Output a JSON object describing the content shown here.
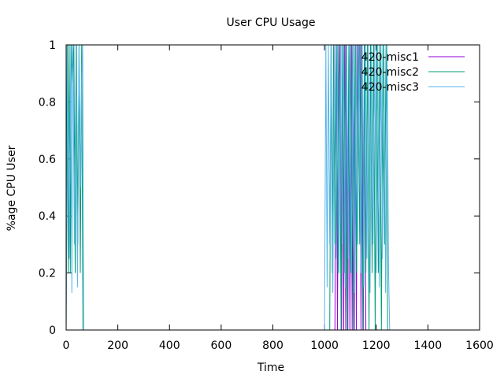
{
  "chart_data": {
    "type": "line",
    "title": "User CPU Usage",
    "xlabel": "Time",
    "ylabel": "%age CPU User",
    "xlim": [
      0,
      1600
    ],
    "ylim": [
      0,
      1
    ],
    "xticks": [
      "0",
      "200",
      "400",
      "600",
      "800",
      "1000",
      "1200",
      "1400",
      "1600"
    ],
    "yticks": [
      "0",
      "0.2",
      "0.4",
      "0.6",
      "0.8",
      "1"
    ],
    "legend_position": "top-right",
    "series": [
      {
        "name": "420-misc1",
        "color": "#9400d3",
        "points": [
          [
            1040,
            0
          ],
          [
            1045,
            1
          ],
          [
            1050,
            0
          ],
          [
            1055,
            1
          ],
          [
            1060,
            0.88
          ],
          [
            1063,
            1
          ],
          [
            1066,
            0
          ],
          [
            1070,
            1
          ],
          [
            1074,
            0
          ],
          [
            1078,
            1
          ],
          [
            1082,
            0
          ],
          [
            1086,
            1
          ],
          [
            1090,
            0
          ],
          [
            1094,
            1
          ],
          [
            1098,
            0
          ],
          [
            1103,
            1
          ],
          [
            1107,
            0
          ],
          [
            1111,
            1
          ],
          [
            1115,
            0
          ],
          [
            1119,
            1
          ],
          [
            1123,
            0
          ],
          [
            1128,
            1
          ],
          [
            1133,
            0.83
          ],
          [
            1137,
            1
          ],
          [
            1141,
            0
          ],
          [
            1145,
            1
          ],
          [
            1150,
            0
          ],
          [
            1154,
            1
          ],
          [
            1160,
            0
          ]
        ]
      },
      {
        "name": "420-misc2",
        "color": "#009e73",
        "points": [
          [
            0,
            0
          ],
          [
            4,
            1
          ],
          [
            8,
            0.2
          ],
          [
            12,
            1
          ],
          [
            16,
            0.2
          ],
          [
            20,
            1
          ],
          [
            25,
            0.87
          ],
          [
            30,
            1
          ],
          [
            35,
            0.2
          ],
          [
            40,
            1
          ],
          [
            45,
            0.3
          ],
          [
            50,
            1
          ],
          [
            55,
            0.2
          ],
          [
            60,
            1
          ],
          [
            65,
            0
          ],
          [
            1020,
            0
          ],
          [
            1025,
            1
          ],
          [
            1030,
            0.2
          ],
          [
            1035,
            1
          ],
          [
            1040,
            0.3
          ],
          [
            1046,
            1
          ],
          [
            1052,
            0.2
          ],
          [
            1058,
            1
          ],
          [
            1064,
            0
          ],
          [
            1070,
            1
          ],
          [
            1076,
            0.2
          ],
          [
            1082,
            1
          ],
          [
            1088,
            0
          ],
          [
            1094,
            1
          ],
          [
            1100,
            0.2
          ],
          [
            1106,
            1
          ],
          [
            1112,
            0
          ],
          [
            1118,
            1
          ],
          [
            1124,
            0.2
          ],
          [
            1130,
            1
          ],
          [
            1136,
            0.3
          ],
          [
            1142,
            1
          ],
          [
            1148,
            0
          ],
          [
            1154,
            1
          ],
          [
            1160,
            0.2
          ],
          [
            1166,
            1
          ],
          [
            1172,
            0
          ],
          [
            1178,
            1
          ],
          [
            1184,
            0.2
          ],
          [
            1190,
            1
          ],
          [
            1196,
            0
          ],
          [
            1202,
            1
          ],
          [
            1208,
            0.2
          ],
          [
            1214,
            1
          ],
          [
            1220,
            0
          ],
          [
            1226,
            1
          ],
          [
            1232,
            0.3
          ],
          [
            1238,
            1
          ],
          [
            1244,
            0
          ]
        ]
      },
      {
        "name": "420-misc3",
        "color": "#56b4e9",
        "points": [
          [
            0,
            0
          ],
          [
            6,
            1
          ],
          [
            12,
            0.25
          ],
          [
            18,
            1
          ],
          [
            22,
            0.13
          ],
          [
            26,
            1
          ],
          [
            32,
            0.3
          ],
          [
            38,
            1
          ],
          [
            44,
            0.15
          ],
          [
            50,
            1
          ],
          [
            56,
            0.5
          ],
          [
            60,
            0.87
          ],
          [
            64,
            1
          ],
          [
            68,
            0
          ],
          [
            1000,
            0
          ],
          [
            1005,
            1
          ],
          [
            1010,
            0.15
          ],
          [
            1015,
            1
          ],
          [
            1020,
            0.3
          ],
          [
            1026,
            1
          ],
          [
            1032,
            0.13
          ],
          [
            1038,
            1
          ],
          [
            1044,
            0.25
          ],
          [
            1050,
            1
          ],
          [
            1056,
            0.2
          ],
          [
            1062,
            1
          ],
          [
            1068,
            0.3
          ],
          [
            1074,
            1
          ],
          [
            1080,
            0.15
          ],
          [
            1086,
            1
          ],
          [
            1092,
            0.25
          ],
          [
            1098,
            1
          ],
          [
            1104,
            0.2
          ],
          [
            1110,
            1
          ],
          [
            1116,
            0.13
          ],
          [
            1122,
            1
          ],
          [
            1128,
            0.3
          ],
          [
            1134,
            1
          ],
          [
            1140,
            0.2
          ],
          [
            1146,
            1
          ],
          [
            1152,
            0.15
          ],
          [
            1158,
            1
          ],
          [
            1164,
            0.25
          ],
          [
            1170,
            1
          ],
          [
            1176,
            0.13
          ],
          [
            1182,
            1
          ],
          [
            1188,
            0.3
          ],
          [
            1194,
            1
          ],
          [
            1200,
            0.2
          ],
          [
            1206,
            1
          ],
          [
            1212,
            0.15
          ],
          [
            1218,
            1
          ],
          [
            1224,
            0.25
          ],
          [
            1230,
            1
          ],
          [
            1236,
            0.13
          ],
          [
            1242,
            1
          ],
          [
            1248,
            0.2
          ],
          [
            1252,
            0
          ]
        ]
      }
    ]
  }
}
